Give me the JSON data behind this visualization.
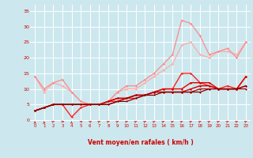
{
  "background_color": "#cce8ee",
  "grid_color": "#ffffff",
  "xlabel": "Vent moyen/en rafales ( km/h )",
  "xlabel_color": "#cc0000",
  "tick_color": "#cc0000",
  "xlim": [
    -0.5,
    23.5
  ],
  "ylim": [
    -1,
    37
  ],
  "yticks": [
    0,
    5,
    10,
    15,
    20,
    25,
    30,
    35
  ],
  "xticks": [
    0,
    1,
    2,
    3,
    4,
    5,
    6,
    7,
    8,
    9,
    10,
    11,
    12,
    13,
    14,
    15,
    16,
    17,
    18,
    19,
    20,
    21,
    22,
    23
  ],
  "series": [
    {
      "x": [
        0,
        1,
        2,
        3,
        4,
        5,
        6,
        7,
        8,
        9,
        10,
        11,
        12,
        13,
        14,
        15,
        16,
        17,
        18,
        19,
        20,
        21,
        22,
        23
      ],
      "y": [
        14,
        9,
        12,
        11,
        9,
        6,
        5,
        5,
        6,
        9,
        10,
        10,
        12,
        14,
        16,
        18,
        24,
        25,
        21,
        20,
        22,
        22,
        21,
        25
      ],
      "color": "#ffaaaa",
      "lw": 0.9,
      "marker": "D",
      "ms": 1.5
    },
    {
      "x": [
        0,
        1,
        2,
        3,
        4,
        5,
        6,
        7,
        8,
        9,
        10,
        11,
        12,
        13,
        14,
        15,
        16,
        17,
        18,
        19,
        20,
        21,
        22,
        23
      ],
      "y": [
        14,
        10,
        12,
        13,
        9,
        6,
        5,
        5,
        6,
        9,
        11,
        11,
        13,
        15,
        18,
        21,
        32,
        31,
        27,
        21,
        22,
        23,
        20,
        25
      ],
      "color": "#ff8888",
      "lw": 0.9,
      "marker": "D",
      "ms": 1.5
    },
    {
      "x": [
        0,
        1,
        2,
        3,
        4,
        5,
        6,
        7,
        8,
        9,
        10,
        11,
        12,
        13,
        14,
        15,
        16,
        17,
        18,
        19,
        20,
        21,
        22,
        23
      ],
      "y": [
        3,
        4,
        5,
        5,
        1,
        4,
        5,
        5,
        6,
        6,
        7,
        7,
        8,
        9,
        10,
        10,
        15,
        15,
        12,
        11,
        10,
        11,
        10,
        14
      ],
      "color": "#ff2222",
      "lw": 1.0,
      "marker": "D",
      "ms": 1.5
    },
    {
      "x": [
        0,
        1,
        2,
        3,
        4,
        5,
        6,
        7,
        8,
        9,
        10,
        11,
        12,
        13,
        14,
        15,
        16,
        17,
        18,
        19,
        20,
        21,
        22,
        23
      ],
      "y": [
        3,
        4,
        5,
        5,
        5,
        5,
        5,
        5,
        6,
        7,
        7,
        8,
        8,
        9,
        10,
        10,
        10,
        12,
        12,
        12,
        10,
        10,
        10,
        14
      ],
      "color": "#dd0000",
      "lw": 1.0,
      "marker": "D",
      "ms": 1.5
    },
    {
      "x": [
        0,
        1,
        2,
        3,
        4,
        5,
        6,
        7,
        8,
        9,
        10,
        11,
        12,
        13,
        14,
        15,
        16,
        17,
        18,
        19,
        20,
        21,
        22,
        23
      ],
      "y": [
        3,
        4,
        5,
        5,
        5,
        5,
        5,
        5,
        6,
        7,
        7,
        8,
        8,
        9,
        9,
        9,
        9,
        10,
        11,
        11,
        10,
        10,
        10,
        11
      ],
      "color": "#cc0000",
      "lw": 1.0,
      "marker": "D",
      "ms": 1.5
    },
    {
      "x": [
        0,
        1,
        2,
        3,
        4,
        5,
        6,
        7,
        8,
        9,
        10,
        11,
        12,
        13,
        14,
        15,
        16,
        17,
        18,
        19,
        20,
        21,
        22,
        23
      ],
      "y": [
        3,
        4,
        5,
        5,
        5,
        5,
        5,
        5,
        5,
        6,
        7,
        8,
        8,
        9,
        9,
        9,
        9,
        9,
        10,
        10,
        10,
        10,
        10,
        11
      ],
      "color": "#aa0000",
      "lw": 0.9,
      "marker": "D",
      "ms": 1.3
    },
    {
      "x": [
        0,
        1,
        2,
        3,
        4,
        5,
        6,
        7,
        8,
        9,
        10,
        11,
        12,
        13,
        14,
        15,
        16,
        17,
        18,
        19,
        20,
        21,
        22,
        23
      ],
      "y": [
        3,
        4,
        5,
        5,
        5,
        5,
        5,
        5,
        5,
        6,
        6,
        7,
        8,
        8,
        9,
        9,
        9,
        9,
        9,
        10,
        10,
        10,
        10,
        10
      ],
      "color": "#880000",
      "lw": 0.9,
      "marker": "D",
      "ms": 1.3
    }
  ],
  "arrow_color": "#cc2222",
  "arrow_directions": [
    0,
    0,
    45,
    90,
    0,
    315,
    315,
    45,
    45,
    45,
    45,
    45,
    45,
    45,
    45,
    45,
    45,
    45,
    45,
    45,
    45,
    45,
    45,
    45
  ]
}
